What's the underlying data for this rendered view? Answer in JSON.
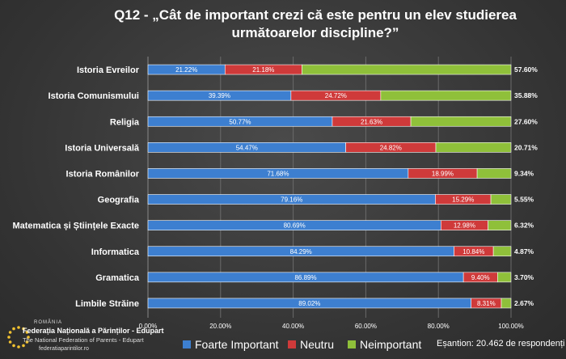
{
  "chart_data": {
    "type": "bar",
    "stacked": true,
    "orientation": "horizontal",
    "title": "Q12 - „Cât de important crezi că este pentru un elev studierea următoarelor discipline?”",
    "categories": [
      "Istoria Evreilor",
      "Istoria Comunismului",
      "Religia",
      "Istoria Universală",
      "Istoria Românilor",
      "Geografia",
      "Matematica și Științele Exacte",
      "Informatica",
      "Gramatica",
      "Limbile Străine"
    ],
    "series": [
      {
        "name": "Foarte Important",
        "color": "#3d7fd0",
        "values": [
          21.22,
          39.39,
          50.77,
          54.47,
          71.68,
          79.16,
          80.69,
          84.29,
          86.89,
          89.02
        ],
        "labels": [
          "21.22%",
          "39.39%",
          "50.77%",
          "54.47%",
          "71.68%",
          "79.16%",
          "80.69%",
          "84.29%",
          "86.89%",
          "89.02%"
        ]
      },
      {
        "name": "Neutru",
        "color": "#cf3a3a",
        "values": [
          21.18,
          24.72,
          21.63,
          24.82,
          18.99,
          15.29,
          12.98,
          10.84,
          9.4,
          8.31
        ],
        "labels": [
          "21.18%",
          "24.72%",
          "21.63%",
          "24.82%",
          "18.99%",
          "15.29%",
          "12.98%",
          "10.84%",
          "9.40%",
          "8.31%"
        ]
      },
      {
        "name": "Neimportant",
        "color": "#8fc03a",
        "values": [
          57.6,
          35.88,
          27.6,
          20.71,
          9.34,
          5.55,
          6.32,
          4.87,
          3.7,
          2.67
        ],
        "labels": [
          "57.60%",
          "35.88%",
          "27.60%",
          "20.71%",
          "9.34%",
          "5.55%",
          "6.32%",
          "4.87%",
          "3.70%",
          "2.67%"
        ]
      }
    ],
    "xlim": [
      0,
      100
    ],
    "xticks": [
      0,
      20,
      40,
      60,
      80,
      100
    ],
    "xtick_labels": [
      "0.00%",
      "20.00%",
      "40.00%",
      "60.00%",
      "80.00%",
      "100.00%"
    ],
    "legend_position": "bottom",
    "grid": true
  },
  "legend": {
    "items": [
      {
        "label": "Foarte Important",
        "color": "#3d7fd0"
      },
      {
        "label": "Neutru",
        "color": "#cf3a3a"
      },
      {
        "label": "Neimportant",
        "color": "#8fc03a"
      }
    ]
  },
  "sample_text": "Eșantion: 20.462 de respondenți",
  "logo": {
    "country": "ROMÂNIA",
    "name": "Federația Națională a Părinților - Edupart",
    "name_en": "The National Federation of Parents - Edupart",
    "url": "federatiaparintilor.ro",
    "icon": "stars-circle-icon"
  }
}
